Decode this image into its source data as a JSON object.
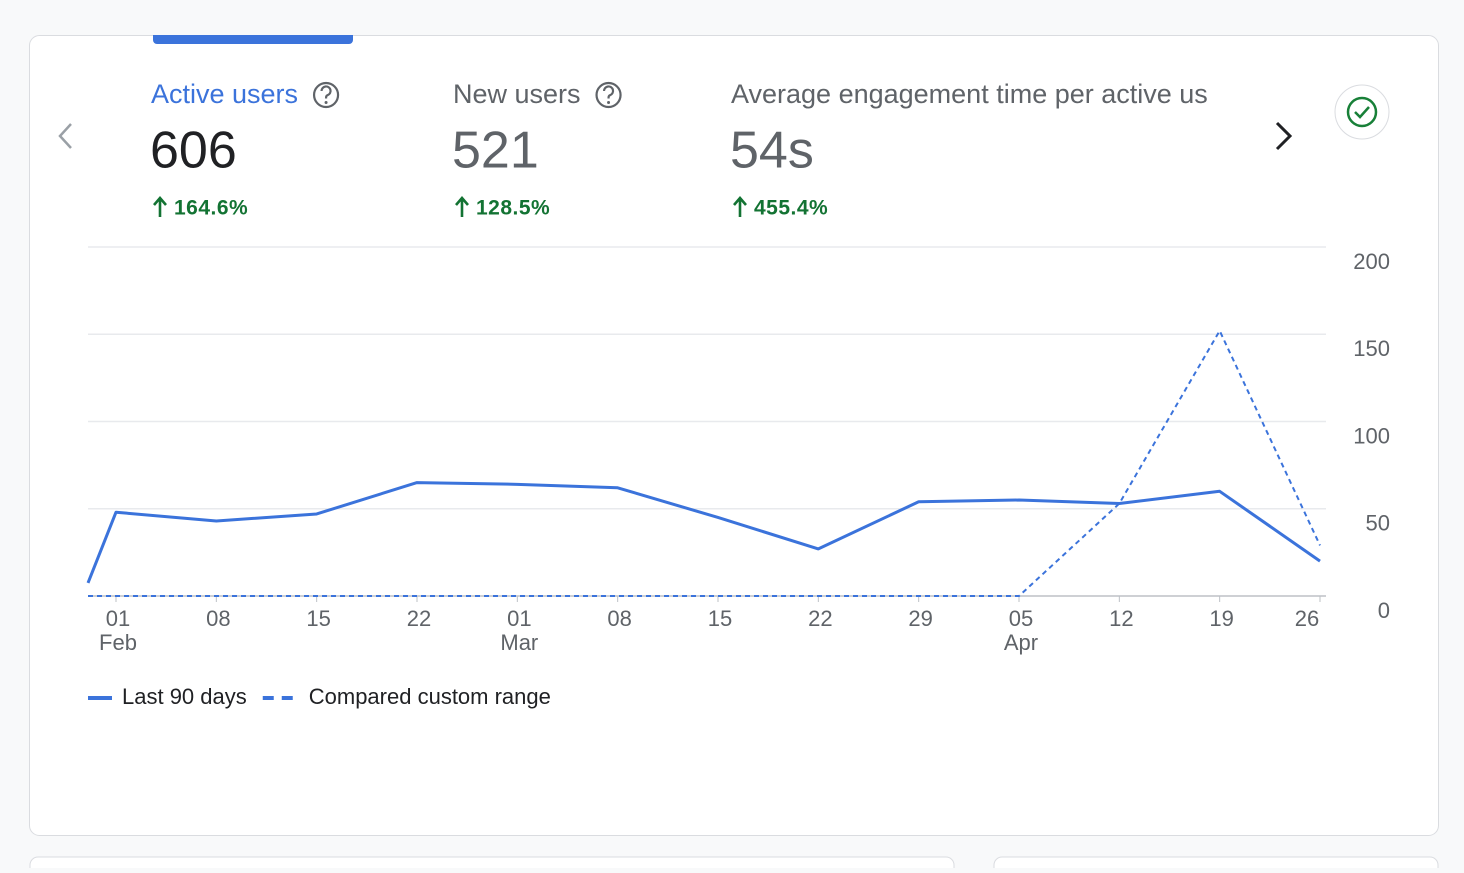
{
  "metrics": [
    {
      "label": "Active users",
      "value": "606",
      "change": "164.6%"
    },
    {
      "label": "New users",
      "value": "521",
      "change": "128.5%"
    },
    {
      "label": "Average engagement time per active us",
      "value": "54s",
      "change": "455.4%"
    }
  ],
  "chart_data": {
    "type": "line",
    "categories": [
      null,
      "01",
      "08",
      "15",
      "22",
      "01",
      "08",
      "15",
      "22",
      "29",
      "05",
      "12",
      "19",
      "26"
    ],
    "category_months": [
      null,
      "Feb",
      null,
      null,
      null,
      "Mar",
      null,
      null,
      null,
      null,
      "Apr",
      null,
      null,
      null
    ],
    "series": [
      {
        "name": "Last 90 days",
        "color": "#3b73db",
        "style": "solid",
        "values": [
          7.5,
          48,
          43,
          47,
          65,
          64,
          62,
          45,
          27,
          54,
          55,
          53,
          60,
          20
        ]
      },
      {
        "name": "Compared custom range",
        "color": "#3b73db",
        "style": "dashed",
        "values": [
          0,
          0,
          0,
          0,
          0,
          0,
          0,
          0,
          0,
          0,
          0,
          53,
          152,
          29
        ]
      }
    ],
    "ylim": [
      0,
      200
    ],
    "yticks": [
      0,
      50,
      100,
      150,
      200
    ],
    "grid": true,
    "y_axis_side": "right",
    "legend": "bottom-left"
  }
}
